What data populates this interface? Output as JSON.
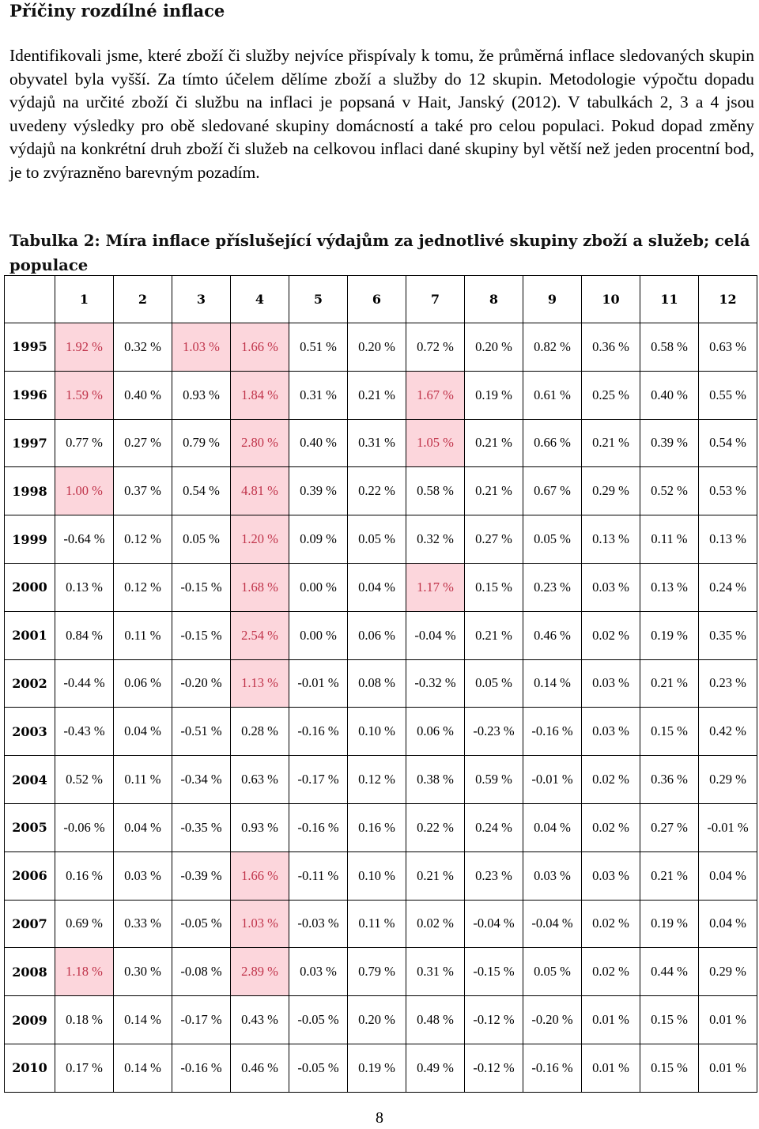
{
  "heading": "Příčiny rozdílné inflace",
  "paragraph": "Identifikovali jsme, které zboží či služby nejvíce přispívaly k tomu, že průměrná inflace sledovaných skupin obyvatel byla vyšší. Za tímto účelem dělíme zboží a služby do 12 skupin. Metodologie výpočtu dopadu výdajů na určité zboží či službu na inflaci je popsaná v Hait, Janský (2012). V tabulkách 2, 3 a 4 jsou uvedeny výsledky pro obě sledované skupiny domácností a také pro celou populaci. Pokud dopad změny výdajů na konkrétní druh zboží či služeb na celkovou inflaci dané skupiny byl větší než jeden procentní bod, je to zvýrazněno barevným pozadím.",
  "table": {
    "caption": "Tabulka 2: Míra inflace příslušející výdajům za jednotlivé skupiny zboží a služeb; celá populace",
    "highlight_bg": "#fcd6dc",
    "highlight_text": "#c0334a",
    "columns": [
      "1",
      "2",
      "3",
      "4",
      "5",
      "6",
      "7",
      "8",
      "9",
      "10",
      "11",
      "12"
    ],
    "rows": [
      {
        "year": "1995",
        "cells": [
          {
            "v": "1.92 %",
            "hl": true
          },
          {
            "v": "0.32 %",
            "hl": false
          },
          {
            "v": "1.03 %",
            "hl": true
          },
          {
            "v": "1.66 %",
            "hl": true
          },
          {
            "v": "0.51 %",
            "hl": false
          },
          {
            "v": "0.20 %",
            "hl": false
          },
          {
            "v": "0.72 %",
            "hl": false
          },
          {
            "v": "0.20 %",
            "hl": false
          },
          {
            "v": "0.82 %",
            "hl": false
          },
          {
            "v": "0.36 %",
            "hl": false
          },
          {
            "v": "0.58 %",
            "hl": false
          },
          {
            "v": "0.63 %",
            "hl": false
          }
        ]
      },
      {
        "year": "1996",
        "cells": [
          {
            "v": "1.59 %",
            "hl": true
          },
          {
            "v": "0.40 %",
            "hl": false
          },
          {
            "v": "0.93 %",
            "hl": false
          },
          {
            "v": "1.84 %",
            "hl": true
          },
          {
            "v": "0.31 %",
            "hl": false
          },
          {
            "v": "0.21 %",
            "hl": false
          },
          {
            "v": "1.67 %",
            "hl": true
          },
          {
            "v": "0.19 %",
            "hl": false
          },
          {
            "v": "0.61 %",
            "hl": false
          },
          {
            "v": "0.25 %",
            "hl": false
          },
          {
            "v": "0.40 %",
            "hl": false
          },
          {
            "v": "0.55 %",
            "hl": false
          }
        ]
      },
      {
        "year": "1997",
        "cells": [
          {
            "v": "0.77 %",
            "hl": false
          },
          {
            "v": "0.27 %",
            "hl": false
          },
          {
            "v": "0.79 %",
            "hl": false
          },
          {
            "v": "2.80 %",
            "hl": true
          },
          {
            "v": "0.40 %",
            "hl": false
          },
          {
            "v": "0.31 %",
            "hl": false
          },
          {
            "v": "1.05 %",
            "hl": true
          },
          {
            "v": "0.21 %",
            "hl": false
          },
          {
            "v": "0.66 %",
            "hl": false
          },
          {
            "v": "0.21 %",
            "hl": false
          },
          {
            "v": "0.39 %",
            "hl": false
          },
          {
            "v": "0.54 %",
            "hl": false
          }
        ]
      },
      {
        "year": "1998",
        "cells": [
          {
            "v": "1.00 %",
            "hl": true
          },
          {
            "v": "0.37 %",
            "hl": false
          },
          {
            "v": "0.54 %",
            "hl": false
          },
          {
            "v": "4.81 %",
            "hl": true
          },
          {
            "v": "0.39 %",
            "hl": false
          },
          {
            "v": "0.22 %",
            "hl": false
          },
          {
            "v": "0.58 %",
            "hl": false
          },
          {
            "v": "0.21 %",
            "hl": false
          },
          {
            "v": "0.67 %",
            "hl": false
          },
          {
            "v": "0.29 %",
            "hl": false
          },
          {
            "v": "0.52 %",
            "hl": false
          },
          {
            "v": "0.53 %",
            "hl": false
          }
        ]
      },
      {
        "year": "1999",
        "cells": [
          {
            "v": "-0.64 %",
            "hl": false
          },
          {
            "v": "0.12 %",
            "hl": false
          },
          {
            "v": "0.05 %",
            "hl": false
          },
          {
            "v": "1.20 %",
            "hl": true
          },
          {
            "v": "0.09 %",
            "hl": false
          },
          {
            "v": "0.05 %",
            "hl": false
          },
          {
            "v": "0.32 %",
            "hl": false
          },
          {
            "v": "0.27 %",
            "hl": false
          },
          {
            "v": "0.05 %",
            "hl": false
          },
          {
            "v": "0.13 %",
            "hl": false
          },
          {
            "v": "0.11 %",
            "hl": false
          },
          {
            "v": "0.13 %",
            "hl": false
          }
        ]
      },
      {
        "year": "2000",
        "cells": [
          {
            "v": "0.13 %",
            "hl": false
          },
          {
            "v": "0.12 %",
            "hl": false
          },
          {
            "v": "-0.15 %",
            "hl": false
          },
          {
            "v": "1.68 %",
            "hl": true
          },
          {
            "v": "0.00 %",
            "hl": false
          },
          {
            "v": "0.04 %",
            "hl": false
          },
          {
            "v": "1.17 %",
            "hl": true
          },
          {
            "v": "0.15 %",
            "hl": false
          },
          {
            "v": "0.23 %",
            "hl": false
          },
          {
            "v": "0.03 %",
            "hl": false
          },
          {
            "v": "0.13 %",
            "hl": false
          },
          {
            "v": "0.24 %",
            "hl": false
          }
        ]
      },
      {
        "year": "2001",
        "cells": [
          {
            "v": "0.84 %",
            "hl": false
          },
          {
            "v": "0.11 %",
            "hl": false
          },
          {
            "v": "-0.15 %",
            "hl": false
          },
          {
            "v": "2.54 %",
            "hl": true
          },
          {
            "v": "0.00 %",
            "hl": false
          },
          {
            "v": "0.06 %",
            "hl": false
          },
          {
            "v": "-0.04 %",
            "hl": false
          },
          {
            "v": "0.21 %",
            "hl": false
          },
          {
            "v": "0.46 %",
            "hl": false
          },
          {
            "v": "0.02 %",
            "hl": false
          },
          {
            "v": "0.19 %",
            "hl": false
          },
          {
            "v": "0.35 %",
            "hl": false
          }
        ]
      },
      {
        "year": "2002",
        "cells": [
          {
            "v": "-0.44 %",
            "hl": false
          },
          {
            "v": "0.06 %",
            "hl": false
          },
          {
            "v": "-0.20 %",
            "hl": false
          },
          {
            "v": "1.13 %",
            "hl": true
          },
          {
            "v": "-0.01 %",
            "hl": false
          },
          {
            "v": "0.08 %",
            "hl": false
          },
          {
            "v": "-0.32 %",
            "hl": false
          },
          {
            "v": "0.05 %",
            "hl": false
          },
          {
            "v": "0.14 %",
            "hl": false
          },
          {
            "v": "0.03 %",
            "hl": false
          },
          {
            "v": "0.21 %",
            "hl": false
          },
          {
            "v": "0.23 %",
            "hl": false
          }
        ]
      },
      {
        "year": "2003",
        "cells": [
          {
            "v": "-0.43 %",
            "hl": false
          },
          {
            "v": "0.04 %",
            "hl": false
          },
          {
            "v": "-0.51 %",
            "hl": false
          },
          {
            "v": "0.28 %",
            "hl": false
          },
          {
            "v": "-0.16 %",
            "hl": false
          },
          {
            "v": "0.10 %",
            "hl": false
          },
          {
            "v": "0.06 %",
            "hl": false
          },
          {
            "v": "-0.23 %",
            "hl": false
          },
          {
            "v": "-0.16 %",
            "hl": false
          },
          {
            "v": "0.03 %",
            "hl": false
          },
          {
            "v": "0.15 %",
            "hl": false
          },
          {
            "v": "0.42 %",
            "hl": false
          }
        ]
      },
      {
        "year": "2004",
        "cells": [
          {
            "v": "0.52 %",
            "hl": false
          },
          {
            "v": "0.11 %",
            "hl": false
          },
          {
            "v": "-0.34 %",
            "hl": false
          },
          {
            "v": "0.63 %",
            "hl": false
          },
          {
            "v": "-0.17 %",
            "hl": false
          },
          {
            "v": "0.12 %",
            "hl": false
          },
          {
            "v": "0.38 %",
            "hl": false
          },
          {
            "v": "0.59 %",
            "hl": false
          },
          {
            "v": "-0.01 %",
            "hl": false
          },
          {
            "v": "0.02 %",
            "hl": false
          },
          {
            "v": "0.36 %",
            "hl": false
          },
          {
            "v": "0.29 %",
            "hl": false
          }
        ]
      },
      {
        "year": "2005",
        "cells": [
          {
            "v": "-0.06 %",
            "hl": false
          },
          {
            "v": "0.04 %",
            "hl": false
          },
          {
            "v": "-0.35 %",
            "hl": false
          },
          {
            "v": "0.93 %",
            "hl": false
          },
          {
            "v": "-0.16 %",
            "hl": false
          },
          {
            "v": "0.16 %",
            "hl": false
          },
          {
            "v": "0.22 %",
            "hl": false
          },
          {
            "v": "0.24 %",
            "hl": false
          },
          {
            "v": "0.04 %",
            "hl": false
          },
          {
            "v": "0.02 %",
            "hl": false
          },
          {
            "v": "0.27 %",
            "hl": false
          },
          {
            "v": "-0.01 %",
            "hl": false
          }
        ]
      },
      {
        "year": "2006",
        "cells": [
          {
            "v": "0.16 %",
            "hl": false
          },
          {
            "v": "0.03 %",
            "hl": false
          },
          {
            "v": "-0.39 %",
            "hl": false
          },
          {
            "v": "1.66 %",
            "hl": true
          },
          {
            "v": "-0.11 %",
            "hl": false
          },
          {
            "v": "0.10 %",
            "hl": false
          },
          {
            "v": "0.21 %",
            "hl": false
          },
          {
            "v": "0.23 %",
            "hl": false
          },
          {
            "v": "0.03 %",
            "hl": false
          },
          {
            "v": "0.03 %",
            "hl": false
          },
          {
            "v": "0.21 %",
            "hl": false
          },
          {
            "v": "0.04 %",
            "hl": false
          }
        ]
      },
      {
        "year": "2007",
        "cells": [
          {
            "v": "0.69 %",
            "hl": false
          },
          {
            "v": "0.33 %",
            "hl": false
          },
          {
            "v": "-0.05 %",
            "hl": false
          },
          {
            "v": "1.03 %",
            "hl": true
          },
          {
            "v": "-0.03 %",
            "hl": false
          },
          {
            "v": "0.11 %",
            "hl": false
          },
          {
            "v": "0.02 %",
            "hl": false
          },
          {
            "v": "-0.04 %",
            "hl": false
          },
          {
            "v": "-0.04 %",
            "hl": false
          },
          {
            "v": "0.02 %",
            "hl": false
          },
          {
            "v": "0.19 %",
            "hl": false
          },
          {
            "v": "0.04 %",
            "hl": false
          }
        ]
      },
      {
        "year": "2008",
        "cells": [
          {
            "v": "1.18 %",
            "hl": true
          },
          {
            "v": "0.30 %",
            "hl": false
          },
          {
            "v": "-0.08 %",
            "hl": false
          },
          {
            "v": "2.89 %",
            "hl": true
          },
          {
            "v": "0.03 %",
            "hl": false
          },
          {
            "v": "0.79 %",
            "hl": false
          },
          {
            "v": "0.31 %",
            "hl": false
          },
          {
            "v": "-0.15 %",
            "hl": false
          },
          {
            "v": "0.05 %",
            "hl": false
          },
          {
            "v": "0.02 %",
            "hl": false
          },
          {
            "v": "0.44 %",
            "hl": false
          },
          {
            "v": "0.29 %",
            "hl": false
          }
        ]
      },
      {
        "year": "2009",
        "cells": [
          {
            "v": "0.18 %",
            "hl": false
          },
          {
            "v": "0.14 %",
            "hl": false
          },
          {
            "v": "-0.17 %",
            "hl": false
          },
          {
            "v": "0.43 %",
            "hl": false
          },
          {
            "v": "-0.05 %",
            "hl": false
          },
          {
            "v": "0.20 %",
            "hl": false
          },
          {
            "v": "0.48 %",
            "hl": false
          },
          {
            "v": "-0.12 %",
            "hl": false
          },
          {
            "v": "-0.20 %",
            "hl": false
          },
          {
            "v": "0.01 %",
            "hl": false
          },
          {
            "v": "0.15 %",
            "hl": false
          },
          {
            "v": "0.01 %",
            "hl": false
          }
        ]
      },
      {
        "year": "2010",
        "cells": [
          {
            "v": "0.17 %",
            "hl": false
          },
          {
            "v": "0.14 %",
            "hl": false
          },
          {
            "v": "-0.16 %",
            "hl": false
          },
          {
            "v": "0.46 %",
            "hl": false
          },
          {
            "v": "-0.05 %",
            "hl": false
          },
          {
            "v": "0.19 %",
            "hl": false
          },
          {
            "v": "0.49 %",
            "hl": false
          },
          {
            "v": "-0.12 %",
            "hl": false
          },
          {
            "v": "-0.16 %",
            "hl": false
          },
          {
            "v": "0.01 %",
            "hl": false
          },
          {
            "v": "0.15 %",
            "hl": false
          },
          {
            "v": "0.01 %",
            "hl": false
          }
        ]
      }
    ]
  },
  "page_number": "8"
}
